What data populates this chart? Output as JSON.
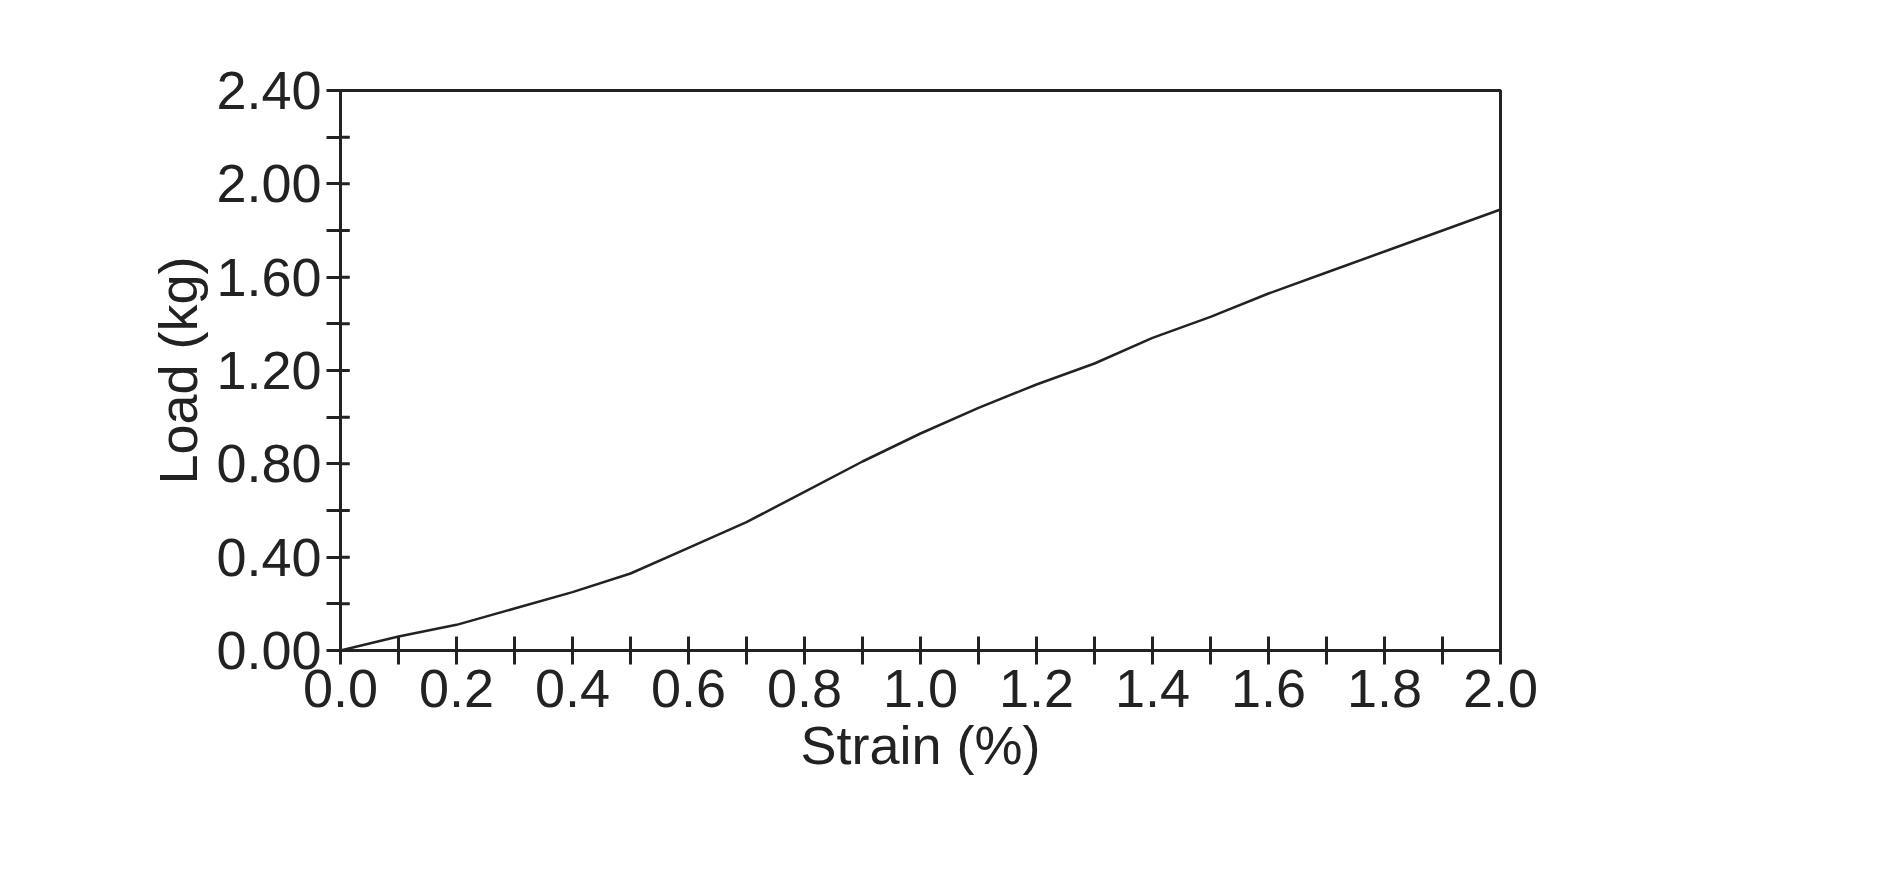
{
  "chart_data": {
    "type": "line",
    "xlabel": "Strain (%)",
    "ylabel": "Load (kg)",
    "x": [
      0,
      0.1,
      0.2,
      0.3,
      0.4,
      0.5,
      0.6,
      0.7,
      0.8,
      0.9,
      1.0,
      1.1,
      1.2,
      1.3,
      1.4,
      1.5,
      1.6,
      1.7,
      1.8,
      1.9,
      2.0
    ],
    "series": [
      {
        "color": "#222222",
        "values": [
          0,
          0.06,
          0.11,
          0.18,
          0.25,
          0.33,
          0.44,
          0.55,
          0.68,
          0.81,
          0.93,
          1.04,
          1.14,
          1.23,
          1.34,
          1.43,
          1.53,
          1.62,
          1.71,
          1.8,
          1.89
        ]
      }
    ],
    "xlim": [
      0,
      2.0
    ],
    "ylim": [
      0,
      2.4
    ],
    "xticks": [
      {
        "value": 0,
        "label": "0.0"
      },
      {
        "value": 0.1,
        "label": null
      },
      {
        "value": 0.2,
        "label": "0.2"
      },
      {
        "value": 0.3,
        "label": null
      },
      {
        "value": 0.4,
        "label": "0.4"
      },
      {
        "value": 0.5,
        "label": null
      },
      {
        "value": 0.6,
        "label": "0.6"
      },
      {
        "value": 0.7,
        "label": null
      },
      {
        "value": 0.8,
        "label": "0.8"
      },
      {
        "value": 0.9,
        "label": null
      },
      {
        "value": 1.0,
        "label": "1.0"
      },
      {
        "value": 1.1,
        "label": null
      },
      {
        "value": 1.2,
        "label": "1.2"
      },
      {
        "value": 1.3,
        "label": null
      },
      {
        "value": 1.4,
        "label": "1.4"
      },
      {
        "value": 1.5,
        "label": null
      },
      {
        "value": 1.6,
        "label": "1.6"
      },
      {
        "value": 1.7,
        "label": null
      },
      {
        "value": 1.8,
        "label": "1.8"
      },
      {
        "value": 1.9,
        "label": null
      },
      {
        "value": 2.0,
        "label": "2.0"
      }
    ],
    "yticks": [
      {
        "value": 0,
        "label": "0.00"
      },
      {
        "value": 0.2,
        "label": null
      },
      {
        "value": 0.4,
        "label": "0.40"
      },
      {
        "value": 0.6,
        "label": null
      },
      {
        "value": 0.8,
        "label": "0.80"
      },
      {
        "value": 1.0,
        "label": null
      },
      {
        "value": 1.2,
        "label": "1.20"
      },
      {
        "value": 1.4,
        "label": null
      },
      {
        "value": 1.6,
        "label": "1.60"
      },
      {
        "value": 1.8,
        "label": null
      },
      {
        "value": 2.0,
        "label": "2.00"
      },
      {
        "value": 2.2,
        "label": null
      },
      {
        "value": 2.4,
        "label": "2.40"
      }
    ],
    "grid": false,
    "marker": "none",
    "line_style": "solid"
  }
}
